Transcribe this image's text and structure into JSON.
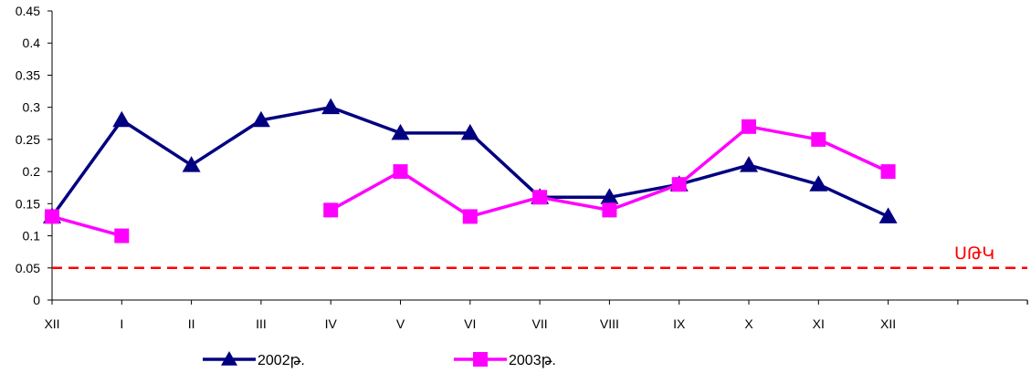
{
  "chart_data": {
    "type": "line",
    "categories": [
      "XII",
      "I",
      "II",
      "III",
      "IV",
      "V",
      "VI",
      "VII",
      "VIII",
      "IX",
      "X",
      "XI",
      "XII"
    ],
    "ylim": [
      0,
      0.45
    ],
    "yticks": [
      "0",
      "0.05",
      "0.1",
      "0.15",
      "0.2",
      "0.25",
      "0.3",
      "0.35",
      "0.4",
      "0.45"
    ],
    "grid": false,
    "legend_position": "bottom",
    "series": [
      {
        "name": "2002թ.",
        "color": "#000080",
        "marker": "triangle",
        "values": [
          0.13,
          0.28,
          0.21,
          0.28,
          0.3,
          0.26,
          0.26,
          0.16,
          0.16,
          0.18,
          0.21,
          0.18,
          0.13
        ]
      },
      {
        "name": "2003թ.",
        "color": "#ff00ff",
        "marker": "square",
        "values": [
          0.13,
          0.1,
          null,
          null,
          0.14,
          0.2,
          0.13,
          0.16,
          0.14,
          0.18,
          0.27,
          0.25,
          0.2
        ]
      }
    ],
    "reference_line": {
      "label": "ՍԹԿ",
      "value": 0.05,
      "color": "#ff0000",
      "style": "dashed"
    }
  }
}
